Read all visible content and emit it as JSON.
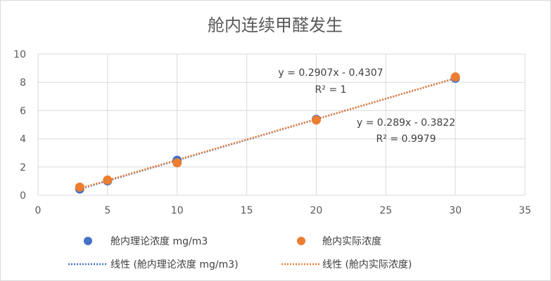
{
  "chart_data": {
    "type": "scatter",
    "title": "舱内连续甲醛发生",
    "xlabel": "",
    "ylabel": "",
    "xlim": [
      0,
      35
    ],
    "ylim": [
      0,
      10
    ],
    "x_ticks": [
      0,
      5,
      10,
      15,
      20,
      25,
      30,
      35
    ],
    "y_ticks": [
      0,
      2,
      4,
      6,
      8,
      10
    ],
    "grid": true,
    "legend_position": "bottom",
    "series": [
      {
        "name": "舱内理论浓度 mg/m3",
        "color": "#4472C4",
        "x": [
          3,
          5,
          10,
          20,
          30
        ],
        "y": [
          0.44,
          1.02,
          2.48,
          5.38,
          8.29
        ]
      },
      {
        "name": "舱内实际浓度",
        "color": "#ED7D31",
        "x": [
          3,
          5,
          10,
          20,
          30
        ],
        "y": [
          0.58,
          1.08,
          2.3,
          5.33,
          8.38
        ]
      }
    ],
    "trendlines": [
      {
        "name": "线性 (舱内理论浓度 mg/m3)",
        "color": "#4472C4",
        "slope": 0.2907,
        "intercept": -0.4307,
        "x_range": [
          3,
          30
        ],
        "equation": "y = 0.2907x - 0.4307",
        "r2": "R² = 1"
      },
      {
        "name": "线性 (舱内实际浓度)",
        "color": "#ED7D31",
        "slope": 0.289,
        "intercept": -0.3822,
        "x_range": [
          3,
          30
        ],
        "equation": "y = 0.289x - 0.3822",
        "r2": "R² = 0.9979"
      }
    ]
  }
}
